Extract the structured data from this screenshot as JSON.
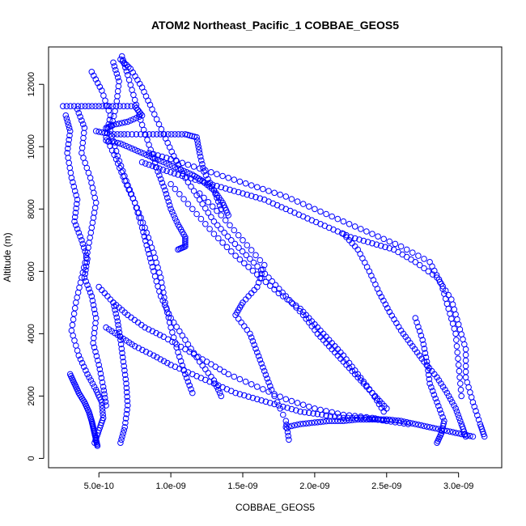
{
  "chart_data": {
    "type": "scatter",
    "title": "ATOM2 Northeast_Pacific_1 COBBAE_GEOS5",
    "xlabel": "COBBAE_GEOS5",
    "ylabel": "Altitude (m)",
    "xlim": [
      1.5e-10,
      3.3e-09
    ],
    "ylim": [
      -300,
      13200
    ],
    "x_ticks": [
      5e-10,
      1e-09,
      1.5e-09,
      2e-09,
      2.5e-09,
      3e-09
    ],
    "x_tick_labels": [
      "5.0e-10",
      "1.0e-09",
      "1.5e-09",
      "2.0e-09",
      "2.5e-09",
      "3.0e-09"
    ],
    "y_ticks": [
      0,
      2000,
      4000,
      6000,
      8000,
      10000,
      12000
    ],
    "y_tick_labels": [
      "0",
      "2000",
      "4000",
      "6000",
      "8000",
      "10000",
      "12000"
    ],
    "marker": "open-circle",
    "color": "#0000ff",
    "grid": false,
    "legend": "none",
    "series": [
      {
        "x": [
          2.7e-10,
          3e-10,
          2.8e-10,
          3.1e-10,
          3.5e-10,
          3.3e-10,
          3.8e-10,
          4.2e-10,
          4e-10,
          4.5e-10,
          4.8e-10,
          4.6e-10,
          5e-10,
          5.3e-10,
          5.5e-10
        ],
        "y": [
          11000,
          10500,
          9800,
          9000,
          8300,
          7600,
          7000,
          6400,
          5800,
          5200,
          4500,
          3700,
          3000,
          2300,
          1700
        ]
      },
      {
        "x": [
          3.5e-10,
          4e-10,
          3.8e-10,
          4.4e-10,
          4.8e-10,
          4.5e-10,
          4.2e-10,
          3.8e-10,
          3.4e-10,
          3.1e-10,
          3.6e-10,
          4.2e-10,
          4.8e-10,
          5.2e-10,
          5.3e-10,
          5e-10,
          4.7e-10
        ],
        "y": [
          11200,
          10600,
          9800,
          9000,
          8200,
          7400,
          6600,
          5800,
          5000,
          4100,
          3300,
          2700,
          2200,
          1800,
          1300,
          900,
          500
        ]
      },
      {
        "x": [
          4.5e-10,
          5.2e-10,
          5.8e-10,
          5.5e-10,
          6.2e-10,
          6.8e-10,
          7.5e-10,
          8.2e-10,
          8.8e-10,
          9.3e-10,
          9.6e-10,
          1e-09,
          1.05e-09,
          1.1e-09,
          1.15e-09
        ],
        "y": [
          12400,
          11800,
          11000,
          10300,
          9600,
          8900,
          8200,
          7400,
          6600,
          5800,
          5000,
          4200,
          3400,
          2700,
          2100
        ]
      },
      {
        "x": [
          6e-10,
          6.4e-10,
          6.2e-10,
          5.8e-10,
          6.3e-10,
          6.9e-10,
          7.5e-10,
          8e-10,
          8.4e-10,
          8.8e-10,
          9.3e-10,
          1e-09,
          1.1e-09,
          1.2e-09,
          1.3e-09,
          1.35e-09
        ],
        "y": [
          12700,
          12100,
          11300,
          10500,
          9700,
          8900,
          8200,
          7400,
          6700,
          6000,
          5200,
          4500,
          3800,
          3100,
          2500,
          2000
        ]
      },
      {
        "x": [
          6.5e-10,
          7.2e-10,
          8e-10,
          8.7e-10,
          9.5e-10,
          1.02e-09,
          1.1e-09,
          1.2e-09,
          1.3e-09,
          1.42e-09,
          1.55e-09,
          1.68e-09,
          1.8e-09,
          1.92e-09,
          2.02e-09,
          2.12e-09,
          2.22e-09,
          2.32e-09,
          2.42e-09,
          2.5e-09
        ],
        "y": [
          12800,
          12500,
          11900,
          11200,
          10400,
          9700,
          9000,
          8300,
          7600,
          7000,
          6400,
          5800,
          5200,
          4600,
          4000,
          3500,
          3000,
          2500,
          2000,
          1600
        ]
      },
      {
        "x": [
          6.6e-10,
          7e-10,
          7.5e-10,
          8e-10,
          8.6e-10,
          9.1e-10,
          9.6e-10,
          1e-09,
          1.05e-09,
          1.1e-09,
          1.1e-09,
          1.05e-09
        ],
        "y": [
          12900,
          12300,
          11500,
          10700,
          9900,
          9200,
          8600,
          8000,
          7500,
          7100,
          6800,
          6700
        ]
      },
      {
        "x": [
          2.5e-10,
          3.8e-10,
          5e-10,
          6.2e-10,
          7.5e-10,
          8e-10,
          7e-10,
          6e-10,
          5.5e-10
        ],
        "y": [
          11300,
          11300,
          11300,
          11300,
          11300,
          11000,
          10800,
          10700,
          10600
        ]
      },
      {
        "x": [
          4.8e-10,
          5.8e-10,
          7e-10,
          8.5e-10,
          9.8e-10,
          1.1e-09,
          1.18e-09,
          1.2e-09,
          1.23e-09,
          1.3e-09,
          1.35e-09
        ],
        "y": [
          10500,
          10400,
          10400,
          10400,
          10400,
          10400,
          10300,
          9800,
          9200,
          8600,
          8000
        ]
      },
      {
        "x": [
          5.5e-10,
          6.5e-10,
          7.5e-10,
          8.5e-10,
          9.5e-10,
          1.05e-09,
          1.15e-09,
          1.22e-09,
          1.3e-09,
          1.36e-09,
          1.4e-09
        ],
        "y": [
          10200,
          10100,
          9900,
          9700,
          9500,
          9300,
          9100,
          8900,
          8600,
          8200,
          7800
        ]
      },
      {
        "x": [
          8e-10,
          9.2e-10,
          1.05e-09,
          1.2e-09,
          1.35e-09,
          1.5e-09,
          1.65e-09,
          1.8e-09,
          1.95e-09,
          2.1e-09,
          2.25e-09,
          2.4e-09,
          2.55e-09,
          2.7e-09,
          2.85e-09,
          2.95e-09,
          3e-09,
          3.05e-09,
          3.05e-09,
          3.1e-09,
          3.15e-09,
          3.18e-09
        ],
        "y": [
          9500,
          9300,
          9100,
          8900,
          8700,
          8500,
          8300,
          8000,
          7700,
          7400,
          7100,
          6900,
          6700,
          6300,
          5800,
          5100,
          4300,
          3500,
          2600,
          1800,
          1100,
          700
        ]
      },
      {
        "x": [
          8.5e-10,
          1e-09,
          1.2e-09,
          1.4e-09,
          1.6e-09,
          1.8e-09,
          2e-09,
          2.2e-09,
          2.4e-09,
          2.6e-09,
          2.8e-09,
          2.88e-09,
          2.93e-09,
          2.98e-09,
          3e-09,
          3.02e-09
        ],
        "y": [
          9800,
          9600,
          9300,
          9000,
          8700,
          8400,
          8000,
          7600,
          7200,
          6800,
          6300,
          5600,
          4800,
          4000,
          3000,
          2000
        ]
      },
      {
        "x": [
          2.2e-09,
          2.3e-09,
          2.38e-09,
          2.45e-09,
          2.52e-09,
          2.6e-09,
          2.68e-09,
          2.76e-09,
          2.85e-09,
          2.92e-09,
          2.98e-09,
          3.02e-09,
          3.05e-09
        ],
        "y": [
          7200,
          6700,
          6000,
          5300,
          4700,
          4100,
          3600,
          3100,
          2600,
          2100,
          1600,
          1100,
          700
        ]
      },
      {
        "x": [
          1e-09,
          1.15e-09,
          1.3e-09,
          1.45e-09,
          1.6e-09,
          1.75e-09,
          1.9e-09,
          2e-09,
          2.1e-09,
          2.2e-09,
          2.3e-09,
          2.4e-09,
          2.48e-09
        ],
        "y": [
          8800,
          8000,
          7200,
          6500,
          5900,
          5300,
          4800,
          4300,
          3800,
          3300,
          2700,
          2100,
          1500
        ]
      },
      {
        "x": [
          1.2e-09,
          1.35e-09,
          1.5e-09,
          1.65e-09,
          1.6e-09,
          1.5e-09,
          1.45e-09,
          1.55e-09,
          1.6e-09,
          1.65e-09,
          1.7e-09,
          1.8e-09,
          1.82e-09
        ],
        "y": [
          8500,
          7800,
          7000,
          6200,
          5500,
          5000,
          4600,
          4000,
          3400,
          2800,
          2200,
          1200,
          600
        ]
      },
      {
        "x": [
          5e-10,
          6e-10,
          7e-10,
          8.2e-10,
          9.5e-10,
          1.1e-09,
          1.25e-09,
          1.4e-09,
          1.6e-09,
          1.8e-09,
          2e-09,
          2.2e-09,
          2.4e-09,
          2.5e-09
        ],
        "y": [
          5500,
          5000,
          4600,
          4200,
          3900,
          3500,
          3100,
          2700,
          2300,
          1900,
          1600,
          1400,
          1300,
          1200
        ]
      },
      {
        "x": [
          5.5e-10,
          6.5e-10,
          7.5e-10,
          8.8e-10,
          1e-09,
          1.15e-09,
          1.3e-09,
          1.45e-09,
          1.6e-09,
          1.75e-09,
          1.9e-09,
          2.05e-09,
          2.2e-09,
          2.35e-09,
          2.5e-09,
          2.65e-09
        ],
        "y": [
          4200,
          3900,
          3600,
          3300,
          3000,
          2700,
          2400,
          2100,
          1900,
          1700,
          1500,
          1400,
          1300,
          1300,
          1200,
          1100
        ]
      },
      {
        "x": [
          3e-10,
          3.3e-10,
          3.6e-10,
          4e-10,
          4.3e-10,
          4.5e-10,
          4.6e-10,
          4.7e-10,
          4.8e-10,
          4.9e-10
        ],
        "y": [
          2700,
          2400,
          2100,
          1800,
          1500,
          1200,
          1000,
          800,
          600,
          400
        ]
      },
      {
        "x": [
          6e-10,
          6.3e-10,
          6.5e-10,
          6.7e-10,
          6.9e-10,
          7e-10,
          6.8e-10,
          6.5e-10
        ],
        "y": [
          5000,
          4400,
          3800,
          3100,
          2400,
          1700,
          1000,
          500
        ]
      },
      {
        "x": [
          2.7e-09,
          2.75e-09,
          2.78e-09,
          2.8e-09,
          2.85e-09,
          2.9e-09,
          2.88e-09,
          2.85e-09
        ],
        "y": [
          4500,
          3800,
          3100,
          2400,
          1800,
          1200,
          800,
          500
        ]
      },
      {
        "x": [
          1.8e-09,
          1.9e-09,
          2e-09,
          2.1e-09,
          2.2e-09,
          2.3e-09,
          2.4e-09,
          2.5e-09,
          2.6e-09,
          2.7e-09,
          2.8e-09,
          2.9e-09,
          3e-09,
          3.1e-09
        ],
        "y": [
          1000,
          1100,
          1150,
          1200,
          1200,
          1250,
          1250,
          1250,
          1200,
          1100,
          1000,
          900,
          800,
          700
        ]
      }
    ]
  }
}
